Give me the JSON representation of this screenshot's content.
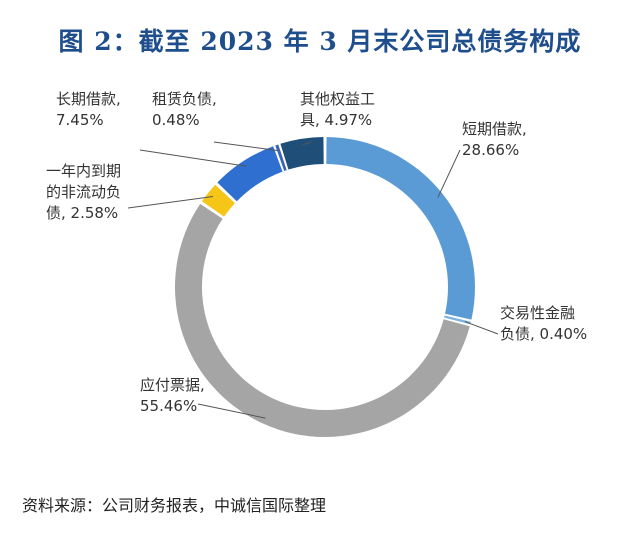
{
  "title": "图 2：截至 2023 年 3 月末公司总债务构成",
  "source": "资料来源：公司财务报表，中诚信国际整理",
  "chart_data": {
    "type": "pie",
    "style": "donut",
    "slices": [
      {
        "name": "短期借款",
        "value": 28.66,
        "label_lines": [
          "短期借款,",
          "28.66%"
        ],
        "color": "#5b9bd5"
      },
      {
        "name": "交易性金融负债",
        "value": 0.4,
        "label_lines": [
          "交易性金融",
          "负债, 0.40%"
        ],
        "color": "#7fb2e0"
      },
      {
        "name": "应付票据",
        "value": 55.46,
        "label_lines": [
          "应付票据,",
          "55.46%"
        ],
        "color": "#a5a5a5"
      },
      {
        "name": "一年内到期的非流动负债",
        "value": 2.58,
        "label_lines": [
          "一年内到期",
          "的非流动负",
          "债, 2.58%"
        ],
        "color": "#f5c518"
      },
      {
        "name": "长期借款",
        "value": 7.45,
        "label_lines": [
          "长期借款,",
          "7.45%"
        ],
        "color": "#2e6fd0"
      },
      {
        "name": "租赁负债",
        "value": 0.48,
        "label_lines": [
          "租赁负债,",
          "0.48%"
        ],
        "color": "#3a64b4"
      },
      {
        "name": "其他权益工具",
        "value": 4.97,
        "label_lines": [
          "其他权益工",
          "具, 4.97%"
        ],
        "color": "#1f4e79"
      }
    ]
  }
}
